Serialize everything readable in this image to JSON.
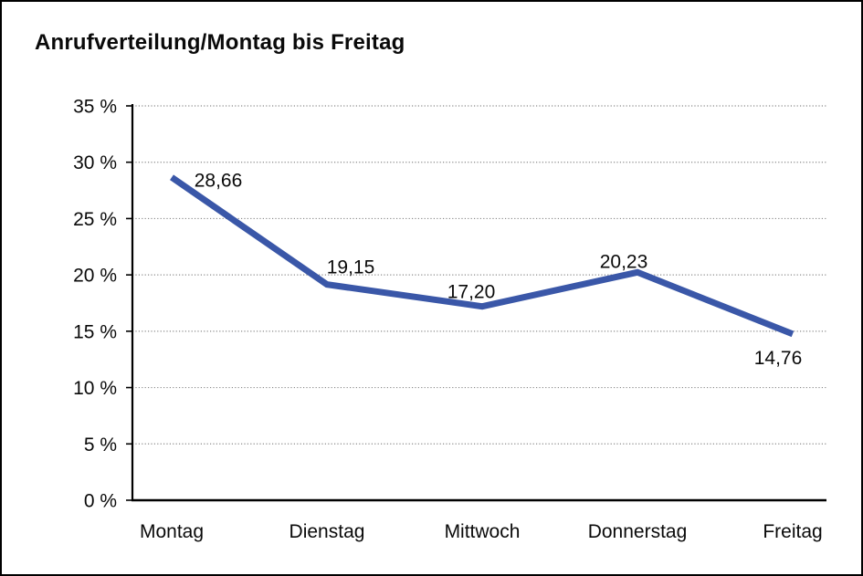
{
  "window": {
    "title": "Anrufverteilung/Montag bis Freitag"
  },
  "chart_data": {
    "type": "line",
    "title": "Anrufverteilung/Montag bis Freitag",
    "categories": [
      "Montag",
      "Dienstag",
      "Mittwoch",
      "Donnerstag",
      "Freitag"
    ],
    "values": [
      28.66,
      19.15,
      17.2,
      20.23,
      14.76
    ],
    "point_labels": [
      "28,66",
      "19,15",
      "17,20",
      "20,23",
      "14,76"
    ],
    "y_tick_values": [
      0,
      5,
      10,
      15,
      20,
      25,
      30,
      35
    ],
    "y_tick_labels": [
      "0 %",
      "5 %",
      "10 %",
      "15 %",
      "20 %",
      "25 %",
      "30 %",
      "35 %"
    ],
    "ylim": [
      0,
      35
    ],
    "y_step": 5,
    "xlabel": "",
    "ylabel": "",
    "legend": "none",
    "grid": "horizontal-dotted"
  },
  "colors": {
    "line": "#3A57A8",
    "grid": "#8A8A8A",
    "axis": "#000000",
    "text": "#0A0A0A",
    "background": "#FFFFFF",
    "border": "#000000"
  }
}
